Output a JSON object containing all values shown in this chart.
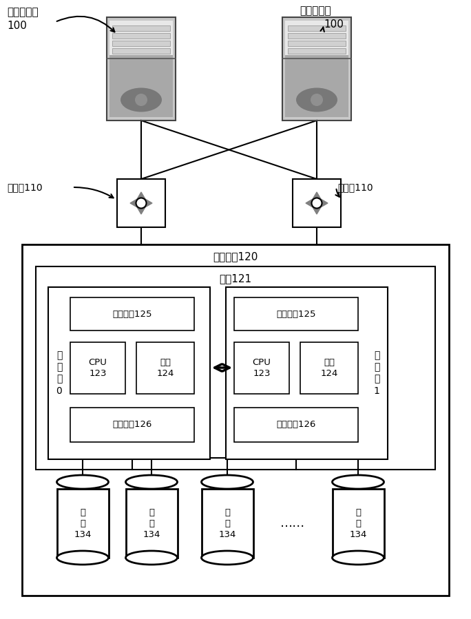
{
  "bg_color": "#ffffff",
  "label_app_server": "应用服务器",
  "label_app_number": "100",
  "label_switch_left": "交换机110",
  "label_switch_right": "交换机110",
  "label_storage": "存储系统120",
  "label_engine": "引擎121",
  "label_controller0_lines": [
    "控",
    "制",
    "器",
    "0"
  ],
  "label_controller1_lines": [
    "控",
    "制",
    "器",
    "1"
  ],
  "label_frontend": "前端接口125",
  "label_cpu_line1": "CPU",
  "label_cpu_line2": "123",
  "label_mem_line1": "内存",
  "label_mem_line2": "124",
  "label_backend": "后端接口126",
  "label_disk_line1": "硬",
  "label_disk_line2": "盘",
  "label_disk_line3": "134",
  "label_dots": "……",
  "fig_w": 6.84,
  "fig_h": 8.99,
  "dpi": 100
}
